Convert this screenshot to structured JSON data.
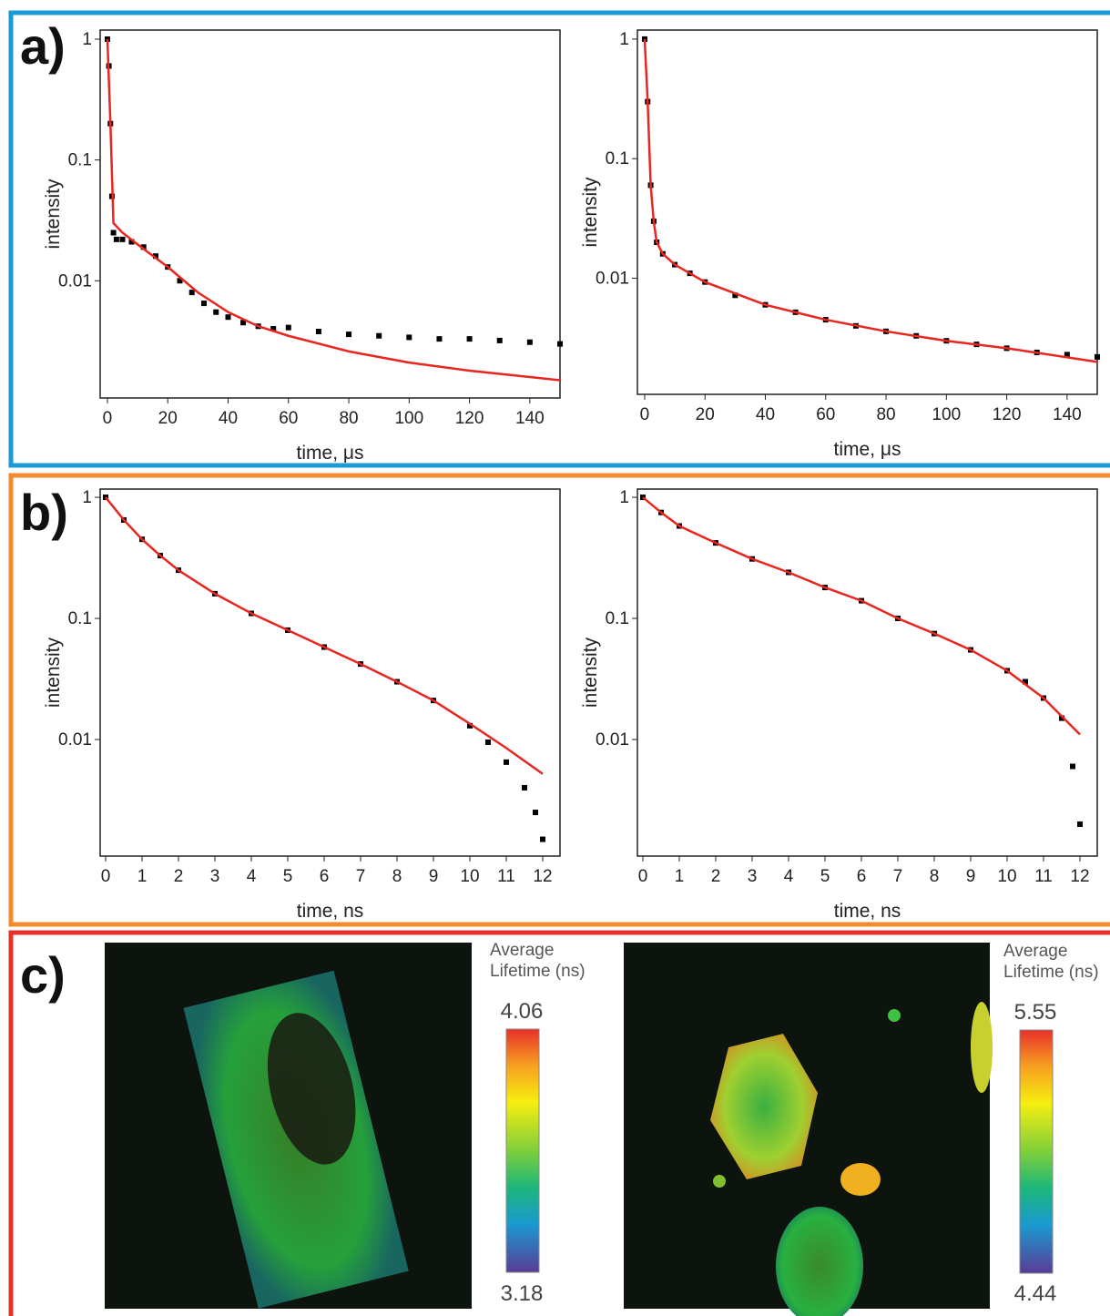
{
  "panels": {
    "labels": [
      "a)",
      "b)",
      "c)"
    ]
  },
  "chart_data": [
    {
      "type": "scatter",
      "log_y": true,
      "ylabel": "intensity",
      "xlabel": "time, μs",
      "xlim": [
        -2.4,
        150
      ],
      "ylim": [
        0.00107,
        1.19
      ],
      "xticks": [
        0,
        20,
        40,
        60,
        80,
        100,
        120,
        140
      ],
      "yticks": [
        1,
        0.1,
        0.01
      ],
      "series": [
        {
          "color": "#000000",
          "marker": "square",
          "x": [
            0,
            0.5,
            1,
            1.5,
            2,
            3,
            5,
            8,
            12,
            16,
            20,
            24,
            28,
            32,
            36,
            40,
            45,
            50,
            55,
            60,
            70,
            80,
            90,
            100,
            110,
            120,
            130,
            140,
            150
          ],
          "values": [
            1,
            0.6,
            0.2,
            0.05,
            0.025,
            0.022,
            0.022,
            0.021,
            0.019,
            0.016,
            0.013,
            0.01,
            0.008,
            0.0065,
            0.0055,
            0.005,
            0.0045,
            0.0042,
            0.004,
            0.0041,
            0.0038,
            0.0036,
            0.0035,
            0.0034,
            0.0033,
            0.0033,
            0.0032,
            0.0031,
            0.003
          ]
        },
        {
          "color": "#e8251f",
          "marker": "line",
          "x": [
            0,
            1,
            2,
            5,
            10,
            20,
            30,
            40,
            50,
            60,
            80,
            100,
            120,
            150
          ],
          "values": [
            1,
            0.2,
            0.03,
            0.025,
            0.02,
            0.013,
            0.008,
            0.0055,
            0.0042,
            0.0035,
            0.0026,
            0.0021,
            0.0018,
            0.0015
          ]
        }
      ]
    },
    {
      "type": "scatter",
      "log_y": true,
      "ylabel": "intensity",
      "xlabel": "time, μs",
      "xlim": [
        -2.4,
        150
      ],
      "ylim": [
        0.00107,
        1.19
      ],
      "xticks": [
        0,
        20,
        40,
        60,
        80,
        100,
        120,
        140
      ],
      "yticks": [
        1,
        0.1,
        0.01
      ],
      "series": [
        {
          "color": "#000000",
          "marker": "square",
          "x": [
            0,
            1,
            2,
            3,
            4,
            6,
            10,
            15,
            20,
            30,
            40,
            50,
            60,
            70,
            80,
            90,
            100,
            110,
            120,
            130,
            140,
            150
          ],
          "values": [
            1,
            0.3,
            0.06,
            0.03,
            0.02,
            0.016,
            0.013,
            0.011,
            0.0093,
            0.0072,
            0.006,
            0.0052,
            0.0045,
            0.004,
            0.0036,
            0.0033,
            0.003,
            0.0028,
            0.0026,
            0.0024,
            0.0023,
            0.0022
          ]
        },
        {
          "color": "#e8251f",
          "marker": "line",
          "x": [
            0,
            1,
            2,
            3,
            4,
            6,
            10,
            20,
            40,
            60,
            80,
            100,
            120,
            150
          ],
          "values": [
            1,
            0.3,
            0.06,
            0.03,
            0.02,
            0.016,
            0.013,
            0.0093,
            0.006,
            0.0045,
            0.0036,
            0.003,
            0.0026,
            0.002
          ]
        }
      ]
    },
    {
      "type": "scatter",
      "log_y": true,
      "ylabel": "intensity",
      "xlabel": "time, ns",
      "xlim": [
        -0.15,
        12.475
      ],
      "ylim": [
        0.00109,
        1.17
      ],
      "xticks": [
        0,
        1,
        2,
        3,
        4,
        5,
        6,
        7,
        8,
        9,
        10,
        11,
        12
      ],
      "yticks": [
        1,
        0.1,
        0.01
      ],
      "series": [
        {
          "color": "#000000",
          "marker": "square",
          "x": [
            0,
            0.5,
            1,
            1.5,
            2,
            3,
            4,
            5,
            6,
            7,
            8,
            9,
            10,
            10.5,
            11,
            11.5,
            11.8,
            12
          ],
          "values": [
            1,
            0.65,
            0.45,
            0.33,
            0.25,
            0.16,
            0.11,
            0.08,
            0.058,
            0.042,
            0.03,
            0.021,
            0.013,
            0.0095,
            0.0065,
            0.004,
            0.0025,
            0.0015
          ]
        },
        {
          "color": "#e8251f",
          "marker": "line",
          "x": [
            0,
            0.5,
            1,
            1.5,
            2,
            3,
            4,
            5,
            6,
            7,
            8,
            9,
            10,
            11,
            12
          ],
          "values": [
            1,
            0.65,
            0.45,
            0.33,
            0.25,
            0.16,
            0.11,
            0.08,
            0.058,
            0.042,
            0.03,
            0.021,
            0.0135,
            0.0085,
            0.0052
          ]
        }
      ]
    },
    {
      "type": "scatter",
      "log_y": true,
      "ylabel": "intensity",
      "xlabel": "time, ns",
      "xlim": [
        -0.15,
        12.475
      ],
      "ylim": [
        0.00109,
        1.17
      ],
      "xticks": [
        0,
        1,
        2,
        3,
        4,
        5,
        6,
        7,
        8,
        9,
        10,
        11,
        12
      ],
      "yticks": [
        1,
        0.1,
        0.01
      ],
      "series": [
        {
          "color": "#000000",
          "marker": "square",
          "x": [
            0,
            0.5,
            1,
            2,
            3,
            4,
            5,
            6,
            7,
            8,
            9,
            10,
            10.5,
            11,
            11.5,
            11.8,
            12
          ],
          "values": [
            1,
            0.75,
            0.58,
            0.42,
            0.31,
            0.24,
            0.18,
            0.14,
            0.1,
            0.075,
            0.055,
            0.037,
            0.03,
            0.022,
            0.015,
            0.006,
            0.002
          ]
        },
        {
          "color": "#e8251f",
          "marker": "line",
          "x": [
            0,
            0.5,
            1,
            2,
            3,
            4,
            5,
            6,
            7,
            8,
            9,
            10,
            11,
            12
          ],
          "values": [
            1,
            0.75,
            0.58,
            0.42,
            0.31,
            0.24,
            0.18,
            0.14,
            0.1,
            0.075,
            0.055,
            0.037,
            0.022,
            0.011
          ]
        }
      ]
    }
  ],
  "colorbars": [
    {
      "label": "Average Lifetime (ns)",
      "max": 4.06,
      "min": 3.18
    },
    {
      "label": "Average Lifetime (ns)",
      "max": 5.55,
      "min": 4.44
    }
  ]
}
